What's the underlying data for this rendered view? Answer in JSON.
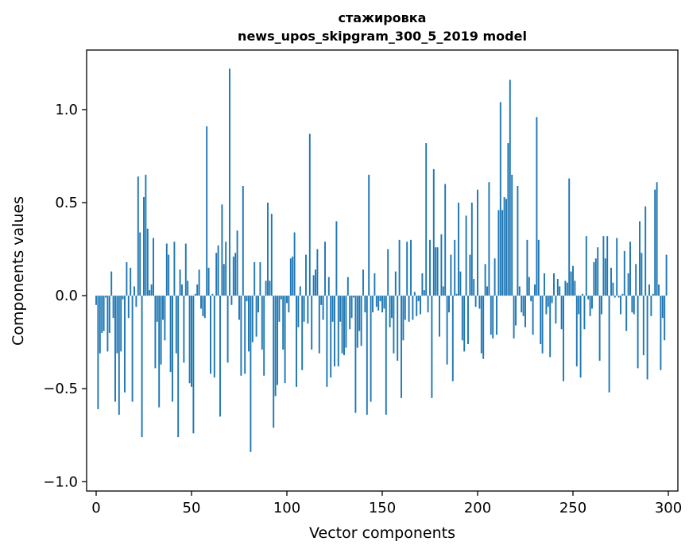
{
  "chart_data": {
    "type": "bar",
    "title": "стажировка",
    "subtitle": "news_upos_skipgram_300_5_2019 model",
    "xlabel": "Vector components",
    "ylabel": "Components values",
    "xlim": [
      -5,
      305
    ],
    "ylim": [
      -1.05,
      1.32
    ],
    "xticks": [
      0,
      50,
      100,
      150,
      200,
      250,
      300
    ],
    "yticks": [
      -1.0,
      -0.5,
      0.0,
      0.5,
      1.0
    ],
    "ytick_labels": [
      "−1.0",
      "−0.5",
      "0.0",
      "0.5",
      "1.0"
    ],
    "grid": false,
    "color": "#1f77b4",
    "values": [
      -0.05,
      -0.61,
      -0.31,
      -0.2,
      -0.19,
      -0.01,
      -0.3,
      -0.2,
      0.13,
      -0.12,
      -0.57,
      -0.31,
      -0.64,
      -0.3,
      -0.02,
      -0.52,
      0.18,
      -0.12,
      0.15,
      -0.57,
      0.05,
      -0.06,
      0.64,
      0.34,
      -0.76,
      0.53,
      0.65,
      0.36,
      0.03,
      0.06,
      0.31,
      -0.39,
      -0.14,
      -0.6,
      -0.37,
      -0.13,
      -0.24,
      0.28,
      0.22,
      -0.41,
      -0.57,
      0.29,
      -0.31,
      -0.76,
      0.14,
      0.06,
      -0.36,
      0.28,
      0.08,
      -0.47,
      -0.49,
      -0.74,
      0.01,
      0.06,
      0.14,
      -0.07,
      -0.11,
      -0.12,
      0.91,
      0.15,
      -0.42,
      0.01,
      -0.44,
      0.23,
      0.27,
      -0.65,
      0.49,
      0.17,
      0.29,
      -0.36,
      1.22,
      -0.05,
      0.21,
      0.23,
      0.35,
      -0.13,
      -0.43,
      0.59,
      -0.42,
      -0.03,
      -0.3,
      -0.84,
      -0.25,
      0.18,
      -0.22,
      -0.09,
      0.18,
      -0.29,
      -0.43,
      0.08,
      0.5,
      0.08,
      0.44,
      -0.71,
      -0.54,
      -0.48,
      -0.14,
      -0.02,
      -0.29,
      -0.47,
      -0.04,
      -0.09,
      0.2,
      0.21,
      0.34,
      -0.49,
      -0.17,
      0.05,
      -0.4,
      -0.14,
      0.22,
      -0.15,
      0.87,
      -0.29,
      0.11,
      0.14,
      0.25,
      -0.31,
      -0.05,
      -0.13,
      0.29,
      -0.49,
      0.1,
      -0.44,
      -0.14,
      -0.38,
      0.4,
      -0.38,
      -0.14,
      -0.31,
      -0.32,
      -0.28,
      0.1,
      -0.18,
      -0.12,
      -0.01,
      -0.63,
      -0.28,
      -0.19,
      -0.27,
      0.14,
      -0.09,
      -0.64,
      0.65,
      -0.57,
      -0.09,
      0.12,
      -0.06,
      -0.08,
      -0.03,
      -0.09,
      -0.07,
      -0.64,
      0.25,
      -0.17,
      -0.12,
      -0.31,
      0.13,
      -0.35,
      0.3,
      -0.55,
      -0.24,
      -0.13,
      0.29,
      -0.14,
      0.3,
      -0.13,
      0.02,
      -0.11,
      -0.03,
      -0.1,
      0.12,
      0.03,
      0.82,
      -0.09,
      0.3,
      -0.55,
      0.68,
      0.26,
      0.26,
      -0.22,
      0.33,
      0.05,
      0.6,
      -0.37,
      -0.09,
      0.22,
      -0.46,
      0.3,
      0.01,
      0.5,
      0.13,
      -0.24,
      -0.3,
      0.43,
      -0.26,
      0.22,
      0.5,
      0.09,
      -0.06,
      0.57,
      -0.07,
      -0.31,
      -0.34,
      0.17,
      0.05,
      0.61,
      -0.21,
      -0.23,
      0.2,
      -0.21,
      0.46,
      1.04,
      0.46,
      0.53,
      0.52,
      0.82,
      1.16,
      0.65,
      -0.23,
      -0.16,
      0.59,
      0.05,
      -0.09,
      -0.11,
      -0.17,
      0.3,
      0.1,
      -0.03,
      -0.21,
      0.06,
      0.96,
      0.3,
      -0.26,
      -0.31,
      0.12,
      -0.1,
      -0.06,
      -0.33,
      -0.04,
      0.12,
      -0.15,
      0.09,
      0.05,
      -0.18,
      -0.46,
      0.08,
      0.07,
      0.63,
      0.13,
      0.16,
      0.08,
      -0.38,
      -0.1,
      -0.44,
      0.01,
      -0.18,
      0.32,
      -0.02,
      -0.11,
      -0.07,
      0.18,
      0.2,
      0.26,
      -0.35,
      -0.1,
      0.32,
      0.2,
      0.32,
      -0.52,
      0.15,
      0.07,
      -0.01,
      0.31,
      -0.01,
      -0.1,
      0.01,
      0.24,
      -0.19,
      0.12,
      0.29,
      -0.09,
      -0.1,
      0.17,
      -0.39,
      0.4,
      0.23,
      -0.32,
      0.48,
      -0.45,
      0.06,
      -0.11,
      0.01,
      0.57,
      0.61,
      0.06,
      -0.4,
      -0.12,
      -0.24,
      0.22
    ],
    "notes": ""
  }
}
